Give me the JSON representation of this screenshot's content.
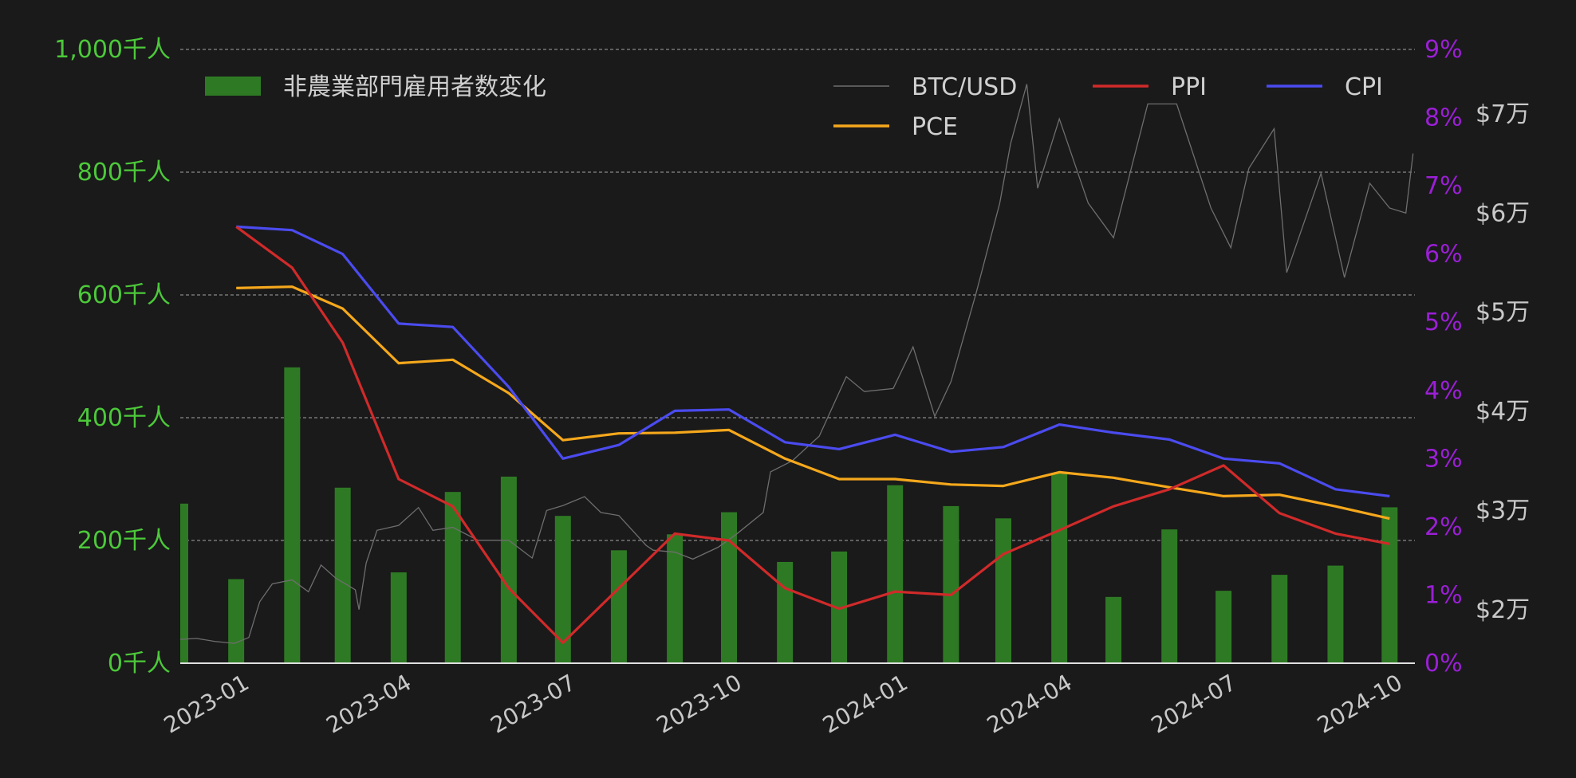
{
  "colors": {
    "background": "#1a1a1a",
    "left_axis": "#4cc93a",
    "pct_axis": "#9b1fd6",
    "btc_axis": "#c8c8c8",
    "bar": "#2e7a24",
    "btc": "#6e6e6e",
    "ppi": "#d02a2a",
    "cpi": "#4b4bf0",
    "pce": "#f5a81c",
    "grid": "#bdbdbd",
    "legend_text": "#d0d0d0",
    "date_text": "#c8c8c8"
  },
  "chart_data": {
    "type": "bar+line",
    "title": "",
    "x_ticks": [
      "2023-01",
      "2023-04",
      "2023-07",
      "2023-10",
      "2024-01",
      "2024-04",
      "2024-07",
      "2024-10"
    ],
    "x_range": [
      "2022-12-01",
      "2024-10-15"
    ],
    "y_left": {
      "label": "",
      "range": [
        0,
        1000
      ],
      "ticks": [
        "0千人",
        "200千人",
        "400千人",
        "600千人",
        "800千人",
        "1,000千人"
      ]
    },
    "y_right_pct": {
      "label": "",
      "range": [
        0,
        9
      ],
      "ticks": [
        "0%",
        "1%",
        "2%",
        "3%",
        "4%",
        "5%",
        "6%",
        "7%",
        "8%",
        "9%"
      ]
    },
    "y_right_btc": {
      "label": "",
      "range": [
        14600,
        76500
      ],
      "ticks": [
        "$2万",
        "$3万",
        "$4万",
        "$5万",
        "$6万",
        "$7万"
      ]
    },
    "grid": "horizontal dashed",
    "legend": [
      {
        "name": "非農業部門雇用者数変化",
        "type": "bar"
      },
      {
        "name": "BTC/USD",
        "type": "line"
      },
      {
        "name": "PPI",
        "type": "line"
      },
      {
        "name": "CPI",
        "type": "line"
      },
      {
        "name": "PCE",
        "type": "line"
      }
    ],
    "payrolls": {
      "dates": [
        "2022-12-01",
        "2023-01-01",
        "2023-02-01",
        "2023-03-01",
        "2023-04-01",
        "2023-05-01",
        "2023-06-01",
        "2023-07-01",
        "2023-08-01",
        "2023-09-01",
        "2023-10-01",
        "2023-11-01",
        "2023-12-01",
        "2024-01-01",
        "2024-02-01",
        "2024-03-01",
        "2024-04-01",
        "2024-05-01",
        "2024-06-01",
        "2024-07-01",
        "2024-08-01",
        "2024-09-01",
        "2024-10-01"
      ],
      "values": [
        260,
        137,
        482,
        286,
        148,
        279,
        304,
        240,
        184,
        210,
        246,
        165,
        182,
        290,
        256,
        236,
        310,
        108,
        218,
        118,
        144,
        159,
        254
      ]
    },
    "inflation_dates": [
      "2023-01-01",
      "2023-02-01",
      "2023-03-01",
      "2023-04-01",
      "2023-05-01",
      "2023-06-01",
      "2023-07-01",
      "2023-08-01",
      "2023-09-01",
      "2023-10-01",
      "2023-11-01",
      "2023-12-01",
      "2024-01-01",
      "2024-02-01",
      "2024-03-01",
      "2024-04-01",
      "2024-05-01",
      "2024-06-01",
      "2024-07-01",
      "2024-08-01",
      "2024-09-01",
      "2024-10-01"
    ],
    "ppi": [
      6.4,
      5.8,
      4.7,
      2.7,
      2.3,
      1.1,
      0.3,
      1.1,
      1.9,
      1.8,
      1.1,
      0.8,
      1.05,
      1.0,
      1.6,
      1.95,
      2.3,
      2.55,
      2.9,
      2.2,
      1.9,
      1.75
    ],
    "cpi": [
      6.4,
      6.35,
      6.0,
      4.98,
      4.93,
      4.05,
      3.0,
      3.2,
      3.7,
      3.72,
      3.24,
      3.14,
      3.35,
      3.1,
      3.17,
      3.5,
      3.38,
      3.28,
      3.0,
      2.93,
      2.55,
      2.45
    ],
    "pce": [
      5.5,
      5.52,
      5.2,
      4.4,
      4.45,
      3.96,
      3.27,
      3.37,
      3.38,
      3.42,
      3.0,
      2.7,
      2.7,
      2.62,
      2.6,
      2.8,
      2.72,
      2.58,
      2.45,
      2.47,
      2.3,
      2.12
    ],
    "btc": {
      "dates": [
        "2022-12-01",
        "2022-12-10",
        "2022-12-20",
        "2022-12-31",
        "2023-01-08",
        "2023-01-14",
        "2023-01-21",
        "2023-02-01",
        "2023-02-10",
        "2023-02-17",
        "2023-02-25",
        "2023-03-08",
        "2023-03-10",
        "2023-03-14",
        "2023-03-20",
        "2023-04-01",
        "2023-04-12",
        "2023-04-20",
        "2023-05-01",
        "2023-05-15",
        "2023-06-01",
        "2023-06-14",
        "2023-06-22",
        "2023-07-01",
        "2023-07-13",
        "2023-07-22",
        "2023-08-01",
        "2023-08-16",
        "2023-08-20",
        "2023-09-01",
        "2023-09-11",
        "2023-09-25",
        "2023-10-05",
        "2023-10-20",
        "2023-10-24",
        "2023-11-05",
        "2023-11-20",
        "2023-12-05",
        "2023-12-15",
        "2023-12-31",
        "2024-01-11",
        "2024-01-23",
        "2024-02-01",
        "2024-02-15",
        "2024-02-28",
        "2024-03-05",
        "2024-03-14",
        "2024-03-20",
        "2024-04-01",
        "2024-04-17",
        "2024-05-01",
        "2024-05-20",
        "2024-06-05",
        "2024-06-24",
        "2024-07-05",
        "2024-07-15",
        "2024-07-29",
        "2024-08-05",
        "2024-08-24",
        "2024-09-06",
        "2024-09-20",
        "2024-10-01",
        "2024-10-10",
        "2024-10-14"
      ],
      "values": [
        17000,
        17100,
        16800,
        16600,
        17200,
        20800,
        22600,
        23000,
        21800,
        24500,
        23200,
        22000,
        20000,
        24700,
        28000,
        28500,
        30300,
        28000,
        28300,
        27000,
        27000,
        25200,
        30000,
        30500,
        31400,
        29800,
        29500,
        26500,
        26000,
        25800,
        25100,
        26300,
        27600,
        29800,
        33900,
        35000,
        37500,
        43500,
        42000,
        42300,
        46500,
        39500,
        43000,
        52000,
        61000,
        67000,
        73000,
        62500,
        69500,
        61000,
        57500,
        71000,
        71000,
        60500,
        56500,
        64500,
        68500,
        54000,
        64000,
        53500,
        63000,
        60500,
        60000,
        66000
      ]
    }
  }
}
